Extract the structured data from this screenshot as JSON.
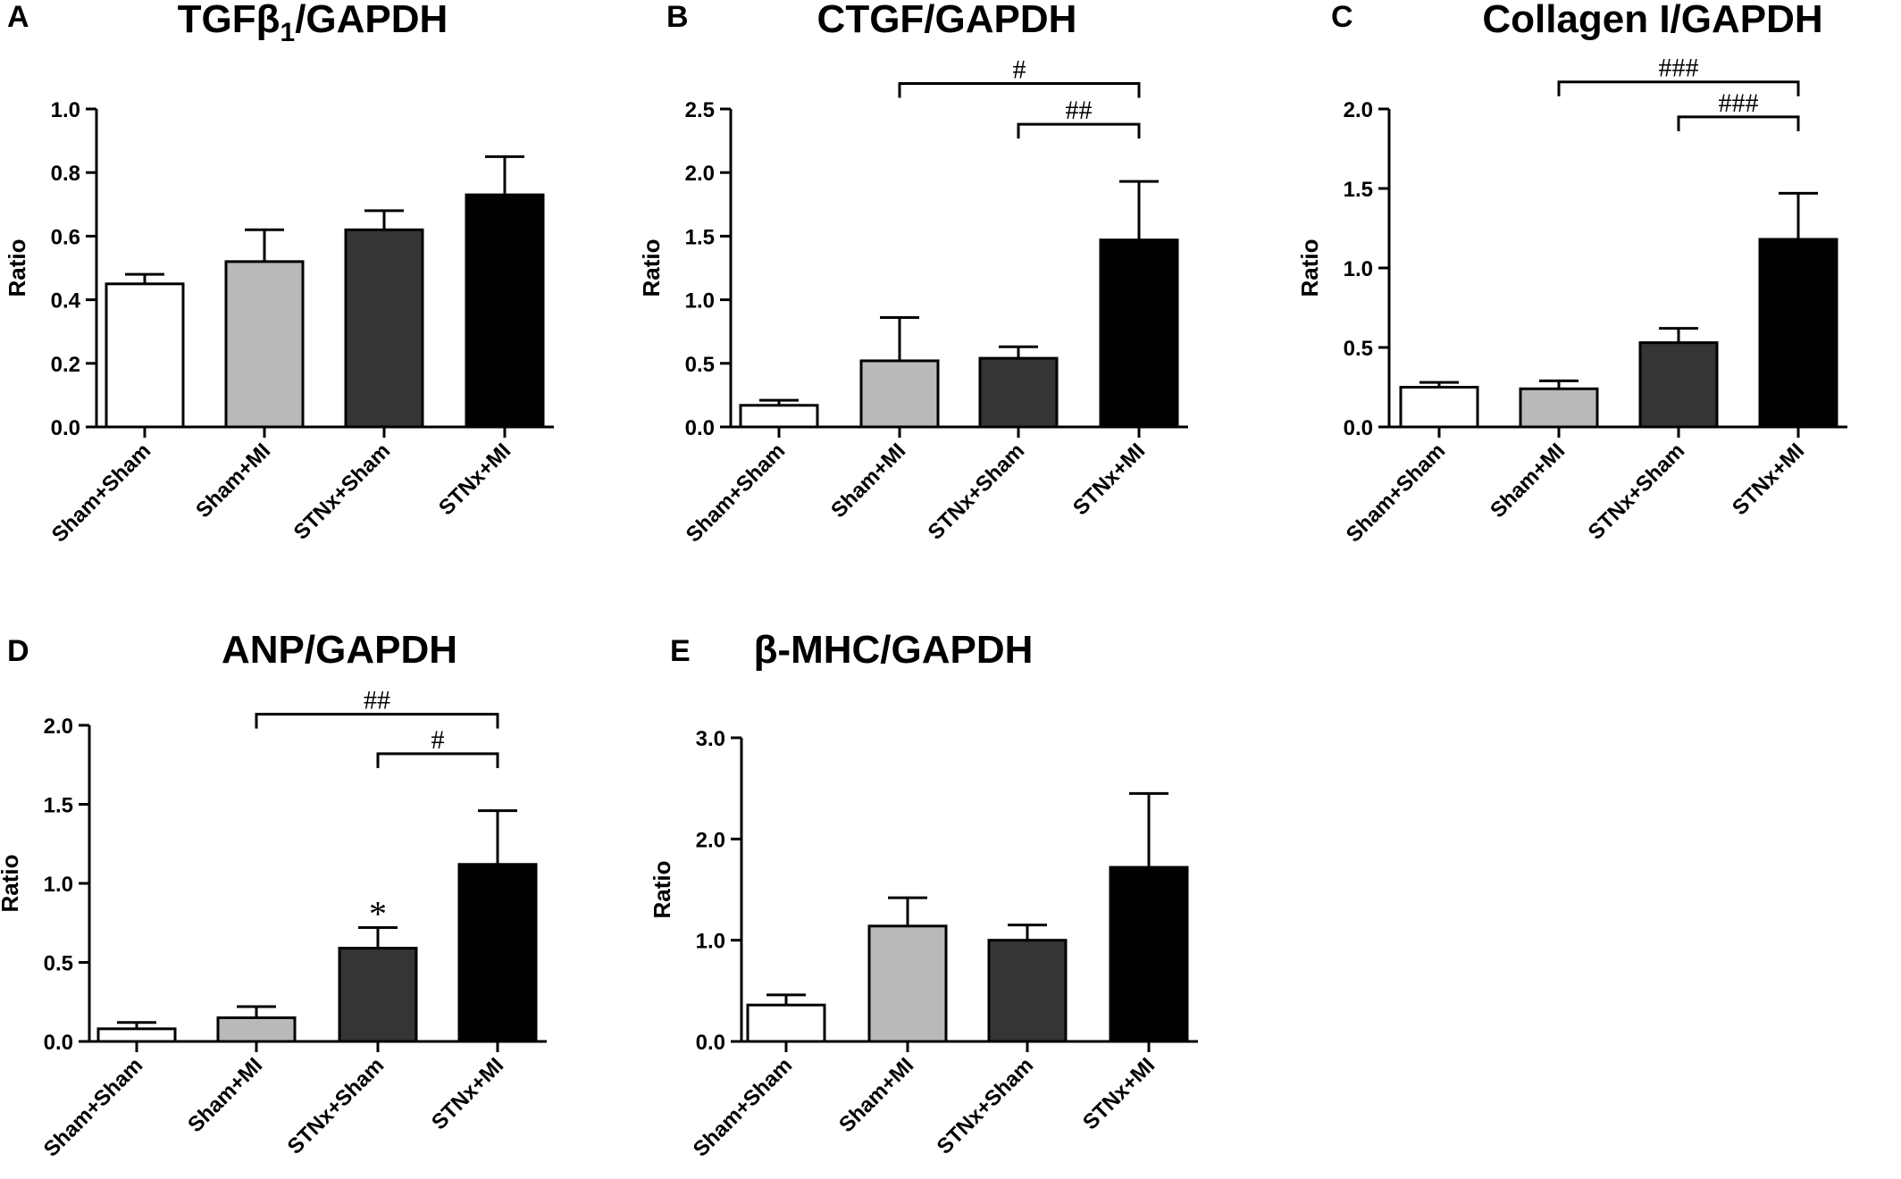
{
  "colors": {
    "Sham+Sham": "#ffffff",
    "Sham+MI": "#b9b9b9",
    "STNx+Sham": "#353535",
    "STNx+MI": "#000000"
  },
  "chart_data": [
    {
      "type": "bar",
      "panel": "A",
      "title": "TGFβ1/GAPDH",
      "title_main": "TGFβ",
      "title_sub": "1",
      "title_tail": "/GAPDH",
      "ylabel": "Ratio",
      "ylim": [
        0,
        1.0
      ],
      "yticks": [
        "0.0",
        "0.2",
        "0.4",
        "0.6",
        "0.8",
        "1.0"
      ],
      "categories": [
        "Sham+Sham",
        "Sham+MI",
        "STNx+Sham",
        "STNx+MI"
      ],
      "values": [
        0.45,
        0.52,
        0.62,
        0.73
      ],
      "errors": [
        0.03,
        0.1,
        0.06,
        0.12
      ],
      "significance": [],
      "markers": []
    },
    {
      "type": "bar",
      "panel": "B",
      "title": "CTGF/GAPDH",
      "ylabel": "Ratio",
      "ylim": [
        0,
        2.5
      ],
      "yticks": [
        "0.0",
        "0.5",
        "1.0",
        "1.5",
        "2.0",
        "2.5"
      ],
      "categories": [
        "Sham+Sham",
        "Sham+MI",
        "STNx+Sham",
        "STNx+MI"
      ],
      "values": [
        0.17,
        0.52,
        0.54,
        1.47
      ],
      "errors": [
        0.04,
        0.34,
        0.09,
        0.46
      ],
      "significance": [
        {
          "from": 1,
          "to": 3,
          "label": "#",
          "level": 2.7
        },
        {
          "from": 2,
          "to": 3,
          "label": "##",
          "level": 2.38
        }
      ],
      "markers": []
    },
    {
      "type": "bar",
      "panel": "C",
      "title": "Collagen I/GAPDH",
      "ylabel": "Ratio",
      "ylim": [
        0,
        2.0
      ],
      "yticks": [
        "0.0",
        "0.5",
        "1.0",
        "1.5",
        "2.0"
      ],
      "categories": [
        "Sham+Sham",
        "Sham+MI",
        "STNx+Sham",
        "STNx+MI"
      ],
      "values": [
        0.25,
        0.24,
        0.53,
        1.18
      ],
      "errors": [
        0.03,
        0.05,
        0.09,
        0.29
      ],
      "significance": [
        {
          "from": 1,
          "to": 3,
          "label": "###",
          "level": 2.17
        },
        {
          "from": 2,
          "to": 3,
          "label": "###",
          "level": 1.95
        }
      ],
      "markers": []
    },
    {
      "type": "bar",
      "panel": "D",
      "title": "ANP/GAPDH",
      "ylabel": "Ratio",
      "ylim": [
        0,
        2.0
      ],
      "yticks": [
        "0.0",
        "0.5",
        "1.0",
        "1.5",
        "2.0"
      ],
      "categories": [
        "Sham+Sham",
        "Sham+MI",
        "STNx+Sham",
        "STNx+MI"
      ],
      "values": [
        0.08,
        0.15,
        0.59,
        1.12
      ],
      "errors": [
        0.04,
        0.07,
        0.13,
        0.34
      ],
      "significance": [
        {
          "from": 1,
          "to": 3,
          "label": "##",
          "level": 2.07
        },
        {
          "from": 2,
          "to": 3,
          "label": "#",
          "level": 1.82
        }
      ],
      "markers": [
        {
          "index": 2,
          "label": "*"
        }
      ]
    },
    {
      "type": "bar",
      "panel": "E",
      "title": "β-MHC/GAPDH",
      "ylabel": "Ratio",
      "ylim": [
        0,
        3.0
      ],
      "yticks": [
        "0.0",
        "1.0",
        "2.0",
        "3.0"
      ],
      "categories": [
        "Sham+Sham",
        "Sham+MI",
        "STNx+Sham",
        "STNx+MI"
      ],
      "values": [
        0.36,
        1.14,
        1.0,
        1.72
      ],
      "errors": [
        0.1,
        0.28,
        0.15,
        0.73
      ],
      "significance": [],
      "markers": []
    }
  ]
}
